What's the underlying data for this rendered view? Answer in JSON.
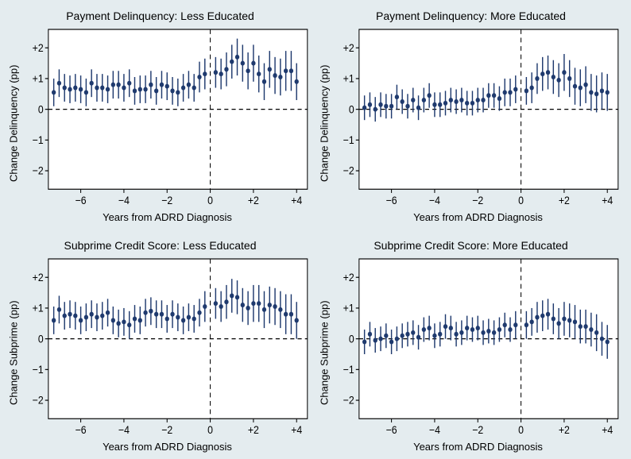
{
  "layout": {
    "rows": 2,
    "cols": 2,
    "bg": "#e4ecef",
    "panel_bg": "#ffffff"
  },
  "axes": {
    "xlabel": "Years from ADRD Diagnosis",
    "xlim": [
      -7.5,
      4.5
    ],
    "xticks": [
      -6,
      -4,
      -2,
      0,
      2,
      4
    ],
    "xtick_labels": [
      "−6",
      "−4",
      "−2",
      "0",
      "+2",
      "+4"
    ],
    "ylim": [
      -2.6,
      2.6
    ],
    "yticks": [
      -2,
      -1,
      0,
      1,
      2
    ],
    "ytick_labels": [
      "−2",
      "−1",
      "0",
      "+1",
      "+2"
    ],
    "vline_x": 0,
    "hline_y": 0,
    "tick_fontsize": 12,
    "label_fontsize": 13,
    "title_fontsize": 14
  },
  "style": {
    "point_color": "#1f3a6e",
    "ci_color": "#1f3a6e",
    "point_radius": 2.6,
    "ci_linewidth": 1.4,
    "dash": "5 4"
  },
  "x_quarters": [
    -7.25,
    -7,
    -6.75,
    -6.5,
    -6.25,
    -6,
    -5.75,
    -5.5,
    -5.25,
    -5,
    -4.75,
    -4.5,
    -4.25,
    -4,
    -3.75,
    -3.5,
    -3.25,
    -3,
    -2.75,
    -2.5,
    -2.25,
    -2,
    -1.75,
    -1.5,
    -1.25,
    -1,
    -0.75,
    -0.5,
    -0.25,
    0.25,
    0.5,
    0.75,
    1,
    1.25,
    1.5,
    1.75,
    2,
    2.25,
    2.5,
    2.75,
    3,
    3.25,
    3.5,
    3.75,
    4
  ],
  "panels": [
    {
      "title": "Payment Delinquency: Less Educated",
      "ylabel": "Change Delinquency (pp)",
      "y": [
        0.55,
        0.85,
        0.7,
        0.65,
        0.7,
        0.65,
        0.55,
        0.85,
        0.7,
        0.7,
        0.65,
        0.8,
        0.8,
        0.7,
        0.85,
        0.6,
        0.65,
        0.65,
        0.8,
        0.6,
        0.8,
        0.75,
        0.6,
        0.55,
        0.7,
        0.8,
        0.7,
        1.05,
        1.15,
        1.2,
        1.15,
        1.3,
        1.55,
        1.7,
        1.5,
        1.25,
        1.5,
        1.15,
        0.9,
        1.3,
        1.1,
        1.05,
        1.25,
        1.25,
        0.9
      ],
      "lo": [
        0.1,
        0.4,
        0.25,
        0.2,
        0.25,
        0.2,
        0.1,
        0.4,
        0.25,
        0.25,
        0.2,
        0.35,
        0.35,
        0.25,
        0.4,
        0.15,
        0.2,
        0.2,
        0.35,
        0.15,
        0.35,
        0.3,
        0.15,
        0.1,
        0.25,
        0.35,
        0.25,
        0.55,
        0.65,
        0.7,
        0.65,
        0.75,
        1.0,
        1.1,
        0.9,
        0.65,
        0.9,
        0.55,
        0.3,
        0.7,
        0.5,
        0.45,
        0.6,
        0.6,
        0.3
      ],
      "hi": [
        1.0,
        1.3,
        1.15,
        1.1,
        1.15,
        1.1,
        1.0,
        1.3,
        1.15,
        1.15,
        1.1,
        1.25,
        1.25,
        1.15,
        1.3,
        1.05,
        1.1,
        1.1,
        1.25,
        1.05,
        1.25,
        1.2,
        1.05,
        1.0,
        1.15,
        1.25,
        1.15,
        1.55,
        1.65,
        1.7,
        1.65,
        1.85,
        2.1,
        2.3,
        2.1,
        1.85,
        2.1,
        1.75,
        1.5,
        1.9,
        1.7,
        1.65,
        1.9,
        1.9,
        1.5
      ]
    },
    {
      "title": "Payment Delinquency: More Educated",
      "ylabel": "Change Delinquency (pp)",
      "y": [
        0.05,
        0.15,
        0.0,
        0.15,
        0.1,
        0.1,
        0.4,
        0.25,
        0.1,
        0.3,
        0.05,
        0.3,
        0.45,
        0.15,
        0.15,
        0.2,
        0.3,
        0.25,
        0.3,
        0.2,
        0.2,
        0.3,
        0.3,
        0.45,
        0.45,
        0.35,
        0.55,
        0.55,
        0.65,
        0.6,
        0.7,
        1.0,
        1.15,
        1.2,
        1.05,
        0.95,
        1.2,
        1.0,
        0.75,
        0.7,
        0.8,
        0.55,
        0.5,
        0.6,
        0.55
      ],
      "lo": [
        -0.35,
        -0.25,
        -0.4,
        -0.25,
        -0.3,
        -0.3,
        0.0,
        -0.15,
        -0.3,
        -0.1,
        -0.35,
        -0.1,
        0.05,
        -0.25,
        -0.25,
        -0.2,
        -0.1,
        -0.15,
        -0.1,
        -0.2,
        -0.2,
        -0.1,
        -0.1,
        0.05,
        0.05,
        -0.05,
        0.1,
        0.1,
        0.2,
        0.15,
        0.2,
        0.5,
        0.6,
        0.65,
        0.5,
        0.4,
        0.6,
        0.4,
        0.15,
        0.1,
        0.2,
        -0.05,
        -0.1,
        0.0,
        -0.05
      ],
      "hi": [
        0.45,
        0.55,
        0.4,
        0.55,
        0.5,
        0.5,
        0.8,
        0.65,
        0.5,
        0.7,
        0.45,
        0.7,
        0.85,
        0.55,
        0.55,
        0.6,
        0.7,
        0.65,
        0.7,
        0.6,
        0.6,
        0.7,
        0.7,
        0.85,
        0.85,
        0.75,
        1.0,
        1.0,
        1.1,
        1.05,
        1.2,
        1.5,
        1.7,
        1.75,
        1.6,
        1.5,
        1.8,
        1.6,
        1.35,
        1.3,
        1.4,
        1.15,
        1.1,
        1.2,
        1.15
      ]
    },
    {
      "title": "Subprime Credit Score: Less Educated",
      "ylabel": "Change Subprime (pp)",
      "y": [
        0.6,
        0.95,
        0.75,
        0.8,
        0.75,
        0.6,
        0.7,
        0.8,
        0.7,
        0.75,
        0.85,
        0.6,
        0.5,
        0.55,
        0.45,
        0.65,
        0.6,
        0.85,
        0.9,
        0.8,
        0.8,
        0.65,
        0.8,
        0.7,
        0.6,
        0.7,
        0.65,
        0.85,
        1.05,
        1.15,
        1.05,
        1.2,
        1.4,
        1.35,
        1.1,
        1.0,
        1.15,
        1.15,
        0.95,
        1.1,
        1.05,
        0.95,
        0.8,
        0.8,
        0.6
      ],
      "lo": [
        0.15,
        0.5,
        0.3,
        0.35,
        0.3,
        0.15,
        0.25,
        0.35,
        0.25,
        0.3,
        0.4,
        0.15,
        0.05,
        0.1,
        0.0,
        0.2,
        0.15,
        0.4,
        0.45,
        0.35,
        0.35,
        0.2,
        0.35,
        0.25,
        0.15,
        0.25,
        0.2,
        0.4,
        0.55,
        0.65,
        0.55,
        0.65,
        0.85,
        0.8,
        0.55,
        0.45,
        0.55,
        0.55,
        0.35,
        0.5,
        0.45,
        0.35,
        0.15,
        0.15,
        0.0
      ],
      "hi": [
        1.05,
        1.4,
        1.2,
        1.25,
        1.2,
        1.05,
        1.15,
        1.25,
        1.15,
        1.2,
        1.3,
        1.05,
        0.95,
        1.0,
        0.9,
        1.1,
        1.05,
        1.3,
        1.35,
        1.25,
        1.25,
        1.1,
        1.25,
        1.15,
        1.05,
        1.15,
        1.1,
        1.3,
        1.55,
        1.65,
        1.55,
        1.75,
        1.95,
        1.9,
        1.65,
        1.55,
        1.75,
        1.75,
        1.55,
        1.7,
        1.65,
        1.55,
        1.45,
        1.45,
        1.2
      ]
    },
    {
      "title": "Subprime Credit Score: More Educated",
      "ylabel": "Change Subprime (pp)",
      "y": [
        -0.1,
        0.15,
        -0.05,
        0.0,
        0.1,
        -0.1,
        0.0,
        0.1,
        0.15,
        0.2,
        0.05,
        0.3,
        0.35,
        0.1,
        0.15,
        0.4,
        0.35,
        0.15,
        0.2,
        0.35,
        0.3,
        0.35,
        0.2,
        0.25,
        0.2,
        0.3,
        0.45,
        0.3,
        0.45,
        0.45,
        0.55,
        0.7,
        0.75,
        0.8,
        0.65,
        0.5,
        0.65,
        0.6,
        0.55,
        0.4,
        0.4,
        0.3,
        0.2,
        0.0,
        -0.1
      ],
      "lo": [
        -0.5,
        -0.25,
        -0.45,
        -0.4,
        -0.3,
        -0.5,
        -0.4,
        -0.3,
        -0.25,
        -0.2,
        -0.35,
        -0.1,
        -0.05,
        -0.3,
        -0.25,
        0.0,
        -0.05,
        -0.25,
        -0.2,
        -0.05,
        -0.1,
        -0.05,
        -0.2,
        -0.15,
        -0.2,
        -0.1,
        0.05,
        -0.1,
        0.0,
        0.0,
        0.1,
        0.2,
        0.25,
        0.3,
        0.15,
        0.0,
        0.1,
        0.05,
        0.0,
        -0.15,
        -0.15,
        -0.25,
        -0.4,
        -0.55,
        -0.65
      ],
      "hi": [
        0.3,
        0.55,
        0.35,
        0.4,
        0.5,
        0.3,
        0.4,
        0.5,
        0.55,
        0.6,
        0.45,
        0.7,
        0.75,
        0.5,
        0.55,
        0.8,
        0.75,
        0.55,
        0.6,
        0.75,
        0.7,
        0.75,
        0.6,
        0.65,
        0.6,
        0.7,
        0.85,
        0.7,
        0.9,
        0.9,
        1.0,
        1.2,
        1.25,
        1.3,
        1.15,
        1.0,
        1.2,
        1.15,
        1.1,
        0.95,
        0.95,
        0.85,
        0.8,
        0.55,
        0.45
      ]
    }
  ]
}
